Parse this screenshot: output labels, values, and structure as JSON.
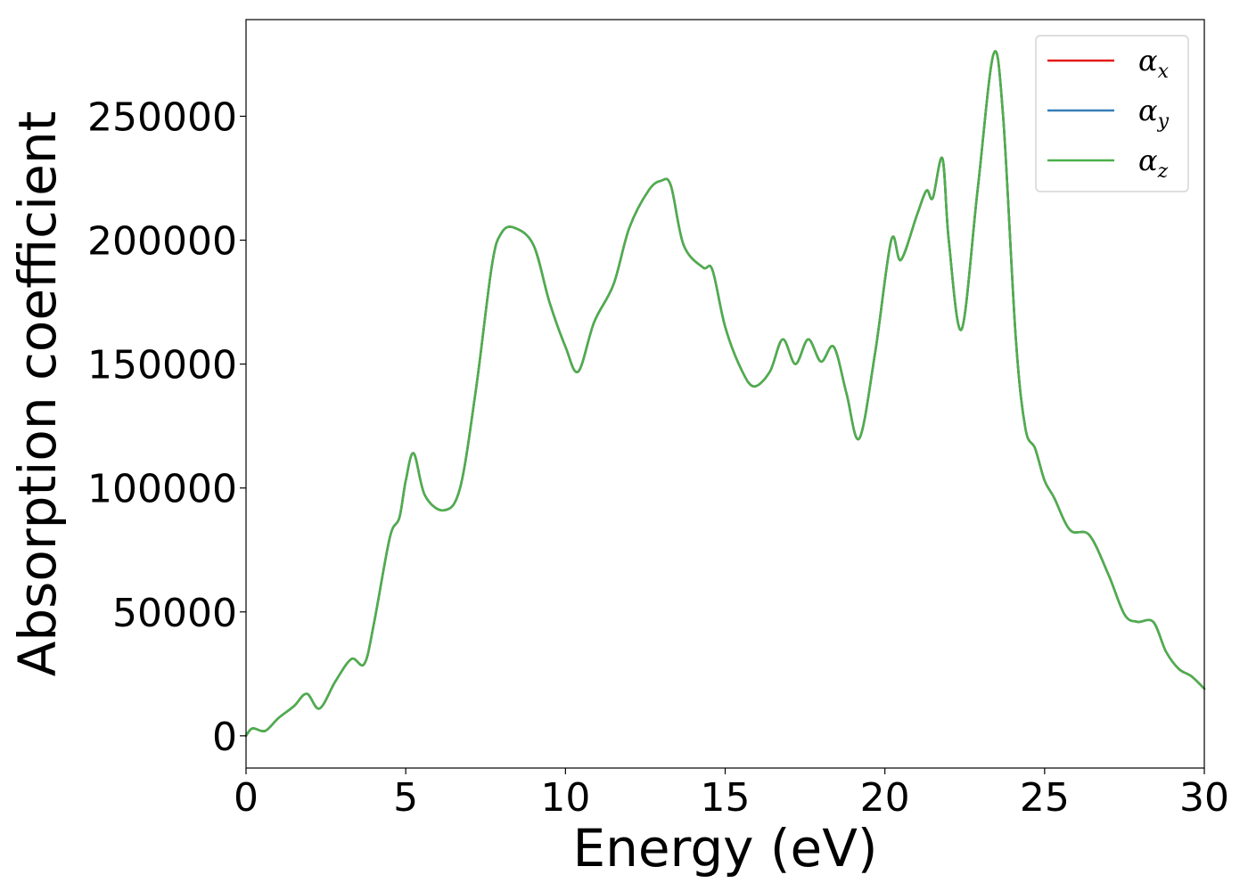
{
  "chart_data": {
    "type": "line",
    "title": "",
    "xlabel": "Energy (eV)",
    "ylabel": "Absorption coefficient",
    "xlim": [
      0,
      30
    ],
    "ylim": [
      -13000,
      289000
    ],
    "xticks": [
      0,
      5,
      10,
      15,
      20,
      25,
      30
    ],
    "yticks": [
      0,
      50000,
      100000,
      150000,
      200000,
      250000
    ],
    "grid": false,
    "legend_position": "top-right",
    "series": [
      {
        "name": "α",
        "subscript": "x",
        "color": "#e41a1c",
        "line_width": 2.5
      },
      {
        "name": "α",
        "subscript": "y",
        "color": "#377eb8",
        "line_width": 2.5
      },
      {
        "name": "α",
        "subscript": "z",
        "color": "#4daf4a",
        "line_width": 2.5
      }
    ],
    "shared_values": {
      "note_for_series": "all three series coincide",
      "x": [
        0,
        0.2,
        0.6,
        1.0,
        1.5,
        1.9,
        2.3,
        2.8,
        3.3,
        3.7,
        4.0,
        4.5,
        4.8,
        5.0,
        5.25,
        5.6,
        6.2,
        6.7,
        7.2,
        7.7,
        8.0,
        8.4,
        9.0,
        9.5,
        10.0,
        10.4,
        10.9,
        11.5,
        12.0,
        12.6,
        13.0,
        13.3,
        13.7,
        14.3,
        14.6,
        15.0,
        15.5,
        15.9,
        16.4,
        16.8,
        17.2,
        17.6,
        18.0,
        18.4,
        18.8,
        19.2,
        19.7,
        20.2,
        20.5,
        21.0,
        21.3,
        21.5,
        21.8,
        22.0,
        22.4,
        22.9,
        23.4,
        23.7,
        24.1,
        24.4,
        24.7,
        25.0,
        25.3,
        25.8,
        26.4,
        27.0,
        27.5,
        27.9,
        28.4,
        28.8,
        29.2,
        29.6,
        30.0
      ],
      "y": [
        0,
        3000,
        2000,
        7000,
        12000,
        17000,
        11000,
        22000,
        31000,
        29000,
        45000,
        80000,
        88000,
        103000,
        114000,
        97000,
        91000,
        100000,
        140000,
        190000,
        203000,
        205000,
        198000,
        175000,
        157000,
        147000,
        167000,
        182000,
        205000,
        220000,
        224000,
        222000,
        198000,
        189000,
        188000,
        165000,
        148000,
        141000,
        147000,
        160000,
        150000,
        160000,
        151000,
        157000,
        138000,
        120000,
        155000,
        200000,
        192000,
        210000,
        220000,
        217000,
        233000,
        200000,
        164000,
        220000,
        275000,
        250000,
        160000,
        124000,
        116000,
        103000,
        96000,
        83000,
        81000,
        65000,
        49000,
        46000,
        46000,
        34000,
        27000,
        24000,
        19000
      ]
    }
  }
}
